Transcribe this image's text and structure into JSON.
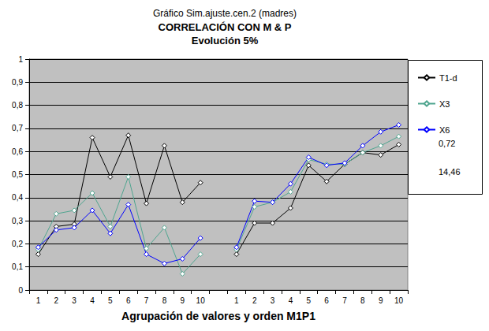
{
  "chart_data": {
    "type": "line",
    "title": "Gráfico Sim.ajuste.cen.2 (madres)",
    "subtitle": [
      "CORRELACIÓN CON M & P",
      "Evolución 5%"
    ],
    "xlabel": "Agrupación de valores y orden M1P1",
    "categories": [
      "1",
      "2",
      "3",
      "4",
      "5",
      "6",
      "7",
      "8",
      "9",
      "10",
      null,
      "1",
      "2",
      "3",
      "4",
      "5",
      "6",
      "7",
      "8",
      "9",
      "10"
    ],
    "series": [
      {
        "name": "T1-d",
        "color": "#000000",
        "marker": "diamond",
        "line_style": "solid",
        "values": [
          0.155,
          0.275,
          0.285,
          0.66,
          0.49,
          0.67,
          0.375,
          0.625,
          0.38,
          0.465,
          null,
          0.155,
          0.29,
          0.29,
          0.355,
          0.54,
          0.47,
          0.545,
          0.595,
          0.585,
          0.63
        ]
      },
      {
        "name": "X3",
        "color": "#4FA58F",
        "marker": "diamond",
        "line_style": "solid",
        "values": [
          0.175,
          0.33,
          0.345,
          0.42,
          0.275,
          0.49,
          0.18,
          0.27,
          0.07,
          0.155,
          null,
          0.175,
          0.36,
          0.38,
          0.425,
          0.565,
          0.545,
          0.545,
          0.595,
          0.625,
          0.665
        ]
      },
      {
        "name": "X6",
        "color": "#0000FF",
        "marker": "diamond",
        "line_style": "solid",
        "values": [
          0.185,
          0.26,
          0.27,
          0.345,
          0.245,
          0.37,
          0.155,
          0.115,
          0.135,
          0.225,
          null,
          0.185,
          0.385,
          0.38,
          0.46,
          0.575,
          0.54,
          0.55,
          0.625,
          0.685,
          0.715
        ]
      }
    ],
    "ylim": [
      0,
      1
    ],
    "yticks": [
      0,
      {
        "value": 0.1,
        "label": "0,1"
      },
      {
        "value": 0.2,
        "label": "0,2"
      },
      {
        "value": 0.3,
        "label": "0,3"
      },
      {
        "value": 0.4,
        "label": "0,4"
      },
      {
        "value": 0.5,
        "label": "0,5"
      },
      {
        "value": 0.6,
        "label": "0,6"
      },
      {
        "value": 0.7,
        "label": "0,7"
      },
      {
        "value": 0.8,
        "label": "0,8"
      },
      {
        "value": 0.9,
        "label": "0,9"
      },
      1
    ],
    "annotations": [
      "0,72",
      "14,46"
    ],
    "grid": true,
    "legend": "right"
  }
}
